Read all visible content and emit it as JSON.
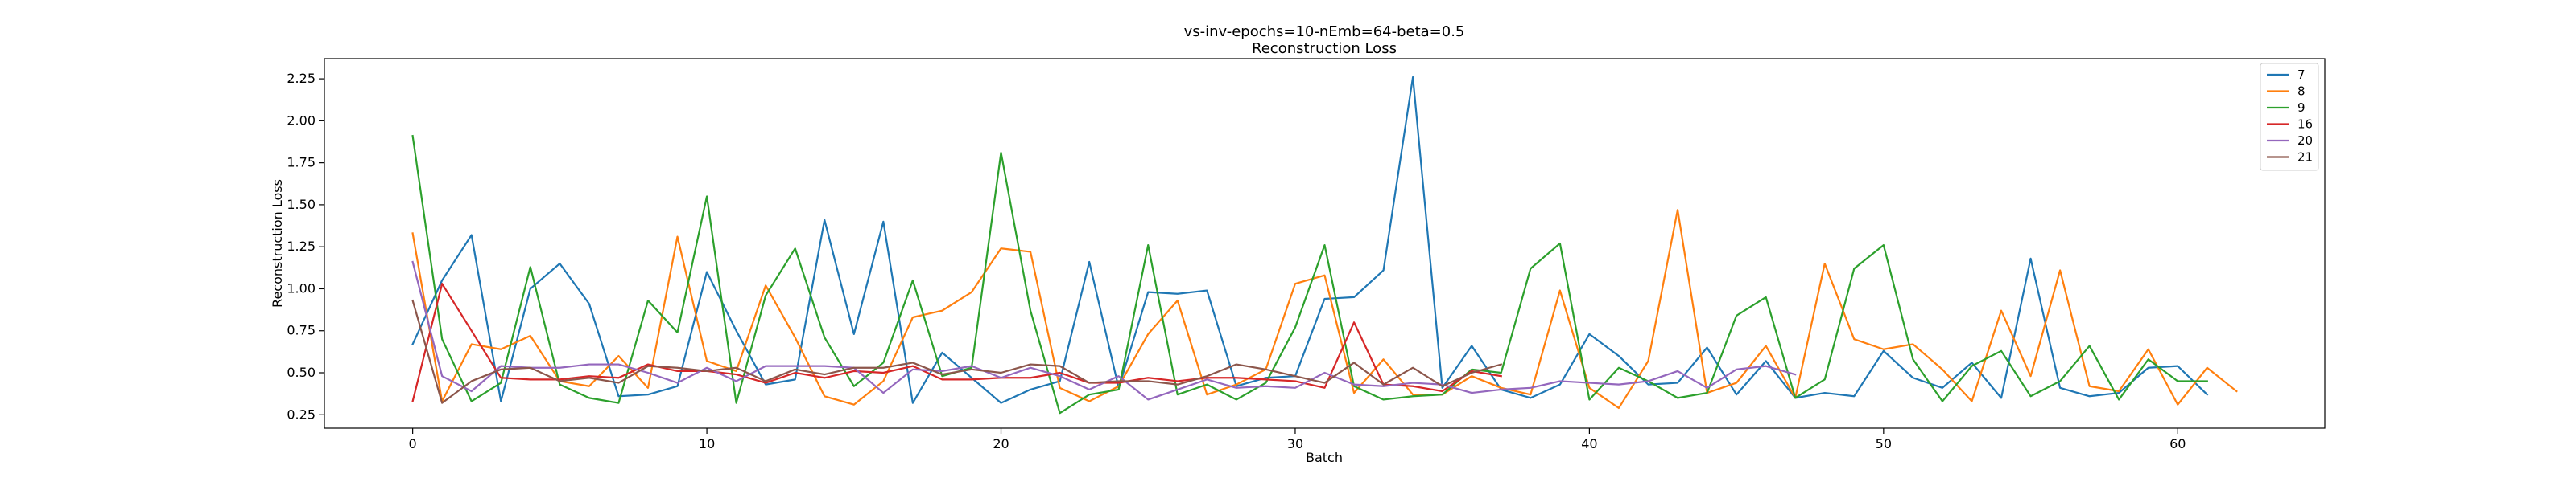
{
  "chart_data": {
    "type": "line",
    "title": "vs-inv-epochs=10-nEmb=64-beta=0.5",
    "subtitle": "Reconstruction Loss",
    "xlabel": "Batch",
    "ylabel": "Reconstruction Loss",
    "xlim": [
      -3,
      65
    ],
    "ylim": [
      0.17,
      2.37
    ],
    "xticks": [
      0,
      10,
      20,
      30,
      40,
      50,
      60
    ],
    "yticks": [
      0.25,
      0.5,
      0.75,
      1.0,
      1.25,
      1.5,
      1.75,
      2.0,
      2.25
    ],
    "ytick_labels": [
      "0.25",
      "0.50",
      "0.75",
      "1.00",
      "1.25",
      "1.50",
      "1.75",
      "2.00",
      "2.25"
    ],
    "grid": false,
    "legend": "top-right",
    "series": [
      {
        "name": "7",
        "color": "#1f77b4",
        "values": [
          0.67,
          1.05,
          1.32,
          0.33,
          1.0,
          1.15,
          0.91,
          0.36,
          0.37,
          0.42,
          1.1,
          0.75,
          0.43,
          0.46,
          1.41,
          0.73,
          1.4,
          0.32,
          0.62,
          0.47,
          0.32,
          0.4,
          0.45,
          1.16,
          0.41,
          0.98,
          0.97,
          0.99,
          0.42,
          0.47,
          0.48,
          0.94,
          0.95,
          1.11,
          2.26,
          0.41,
          0.66,
          0.4,
          0.35,
          0.43,
          0.73,
          0.6,
          0.43,
          0.44,
          0.65,
          0.37,
          0.57,
          0.35,
          0.38,
          0.36,
          0.63,
          0.47,
          0.41,
          0.56,
          0.35,
          1.18,
          0.41,
          0.36,
          0.38,
          0.53,
          0.54,
          0.37
        ]
      },
      {
        "name": "8",
        "color": "#ff7f0e",
        "values": [
          1.33,
          0.33,
          0.67,
          0.64,
          0.72,
          0.45,
          0.42,
          0.6,
          0.41,
          1.31,
          0.57,
          0.51,
          1.02,
          0.71,
          0.36,
          0.31,
          0.45,
          0.83,
          0.87,
          0.98,
          1.24,
          1.22,
          0.41,
          0.33,
          0.42,
          0.73,
          0.93,
          0.37,
          0.43,
          0.52,
          1.03,
          1.08,
          0.38,
          0.58,
          0.37,
          0.37,
          0.48,
          0.41,
          0.37,
          0.99,
          0.41,
          0.29,
          0.57,
          1.47,
          0.38,
          0.44,
          0.66,
          0.35,
          1.15,
          0.7,
          0.64,
          0.67,
          0.52,
          0.33,
          0.87,
          0.48,
          1.11,
          0.42,
          0.39,
          0.64,
          0.31,
          0.53,
          0.39
        ]
      },
      {
        "name": "9",
        "color": "#2ca02c",
        "values": [
          1.91,
          0.7,
          0.33,
          0.44,
          1.13,
          0.43,
          0.35,
          0.32,
          0.93,
          0.74,
          1.55,
          0.32,
          0.96,
          1.24,
          0.71,
          0.42,
          0.56,
          1.05,
          0.48,
          0.53,
          1.81,
          0.87,
          0.26,
          0.37,
          0.4,
          1.26,
          0.37,
          0.43,
          0.34,
          0.44,
          0.77,
          1.26,
          0.42,
          0.34,
          0.36,
          0.37,
          0.52,
          0.5,
          1.12,
          1.27,
          0.34,
          0.53,
          0.45,
          0.35,
          0.38,
          0.84,
          0.95,
          0.35,
          0.46,
          1.12,
          1.26,
          0.58,
          0.33,
          0.54,
          0.63,
          0.36,
          0.45,
          0.66,
          0.34,
          0.58,
          0.45,
          0.45
        ]
      },
      {
        "name": "16",
        "color": "#d62728",
        "values": [
          0.33,
          1.03,
          0.75,
          0.47,
          0.46,
          0.46,
          0.48,
          0.47,
          0.55,
          0.51,
          0.51,
          0.49,
          0.44,
          0.5,
          0.47,
          0.51,
          0.5,
          0.54,
          0.46,
          0.46,
          0.47,
          0.47,
          0.5,
          0.44,
          0.44,
          0.47,
          0.45,
          0.47,
          0.47,
          0.46,
          0.45,
          0.41,
          0.8,
          0.43,
          0.42,
          0.39,
          0.51,
          0.48
        ]
      },
      {
        "name": "20",
        "color": "#9467bd",
        "values": [
          1.16,
          0.48,
          0.39,
          0.54,
          0.53,
          0.53,
          0.55,
          0.55,
          0.5,
          0.44,
          0.53,
          0.45,
          0.54,
          0.54,
          0.54,
          0.53,
          0.38,
          0.52,
          0.51,
          0.54,
          0.47,
          0.53,
          0.48,
          0.4,
          0.48,
          0.34,
          0.4,
          0.46,
          0.41,
          0.42,
          0.41,
          0.5,
          0.43,
          0.42,
          0.44,
          0.43,
          0.38,
          0.4,
          0.41,
          0.45,
          0.44,
          0.43,
          0.45,
          0.51,
          0.41,
          0.52,
          0.54,
          0.49
        ]
      },
      {
        "name": "21",
        "color": "#8c564b",
        "values": [
          0.93,
          0.32,
          0.45,
          0.52,
          0.53,
          0.45,
          0.47,
          0.44,
          0.54,
          0.53,
          0.51,
          0.53,
          0.45,
          0.52,
          0.49,
          0.53,
          0.53,
          0.56,
          0.49,
          0.52,
          0.5,
          0.55,
          0.54,
          0.44,
          0.45,
          0.45,
          0.43,
          0.48,
          0.55,
          0.52,
          0.48,
          0.44,
          0.56,
          0.43,
          0.53,
          0.42,
          0.5,
          0.55
        ]
      }
    ]
  }
}
